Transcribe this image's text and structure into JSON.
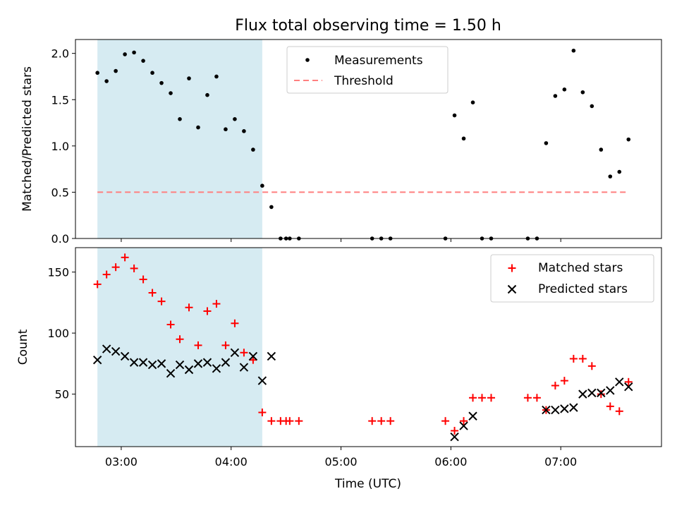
{
  "chart_data": [
    {
      "type": "scatter",
      "title": "Flux total observing time = 1.50 h",
      "xlabel": "",
      "ylabel": "Matched/Predicted stars",
      "xlim": [
        "02:35",
        "07:55"
      ],
      "ylim": [
        0,
        2.15
      ],
      "yticks": [
        "0.0",
        "0.5",
        "1.0",
        "1.5",
        "2.0"
      ],
      "grid": false,
      "legend": "top-center",
      "shaded_interval": [
        "02:47",
        "04:17"
      ],
      "threshold": {
        "name": "Threshold",
        "y": 0.5,
        "x": [
          "02:47",
          "07:37"
        ],
        "color": "#ff7f7f"
      },
      "series": [
        {
          "name": "Measurements",
          "color": "#000000",
          "points": [
            [
              "02:47",
              1.79
            ],
            [
              "02:52",
              1.7
            ],
            [
              "02:57",
              1.81
            ],
            [
              "03:02",
              1.99
            ],
            [
              "03:07",
              2.01
            ],
            [
              "03:12",
              1.92
            ],
            [
              "03:17",
              1.79
            ],
            [
              "03:22",
              1.68
            ],
            [
              "03:27",
              1.57
            ],
            [
              "03:32",
              1.29
            ],
            [
              "03:37",
              1.73
            ],
            [
              "03:42",
              1.2
            ],
            [
              "03:47",
              1.55
            ],
            [
              "03:52",
              1.75
            ],
            [
              "03:57",
              1.18
            ],
            [
              "04:02",
              1.29
            ],
            [
              "04:07",
              1.16
            ],
            [
              "04:12",
              0.96
            ],
            [
              "04:17",
              0.57
            ],
            [
              "04:22",
              0.34
            ],
            [
              "04:27",
              0.0
            ],
            [
              "04:30",
              0.0
            ],
            [
              "04:32",
              0.0
            ],
            [
              "04:37",
              0.0
            ],
            [
              "05:17",
              0.0
            ],
            [
              "05:22",
              0.0
            ],
            [
              "05:27",
              0.0
            ],
            [
              "05:57",
              0.0
            ],
            [
              "06:02",
              1.33
            ],
            [
              "06:07",
              1.08
            ],
            [
              "06:12",
              1.47
            ],
            [
              "06:17",
              0.0
            ],
            [
              "06:22",
              0.0
            ],
            [
              "06:42",
              0.0
            ],
            [
              "06:47",
              0.0
            ],
            [
              "06:52",
              1.03
            ],
            [
              "06:57",
              1.54
            ],
            [
              "07:02",
              1.61
            ],
            [
              "07:07",
              2.03
            ],
            [
              "07:12",
              1.58
            ],
            [
              "07:17",
              1.43
            ],
            [
              "07:22",
              0.96
            ],
            [
              "07:27",
              0.67
            ],
            [
              "07:32",
              0.72
            ],
            [
              "07:37",
              1.07
            ]
          ]
        }
      ]
    },
    {
      "type": "scatter",
      "xlabel": "Time (UTC)",
      "ylabel": "Count",
      "xlim": [
        "02:35",
        "07:55"
      ],
      "ylim": [
        7,
        170
      ],
      "xticks": [
        "03:00",
        "04:00",
        "05:00",
        "06:00",
        "07:00"
      ],
      "yticks": [
        "50",
        "100",
        "150"
      ],
      "grid": false,
      "legend": "top-right",
      "shaded_interval": [
        "02:47",
        "04:17"
      ],
      "series": [
        {
          "name": "Matched stars",
          "marker": "plus",
          "color": "#ff0000",
          "points": [
            [
              "02:47",
              140
            ],
            [
              "02:52",
              148
            ],
            [
              "02:57",
              154
            ],
            [
              "03:02",
              162
            ],
            [
              "03:07",
              153
            ],
            [
              "03:12",
              144
            ],
            [
              "03:17",
              133
            ],
            [
              "03:22",
              126
            ],
            [
              "03:27",
              107
            ],
            [
              "03:32",
              95
            ],
            [
              "03:37",
              121
            ],
            [
              "03:42",
              90
            ],
            [
              "03:47",
              118
            ],
            [
              "03:52",
              124
            ],
            [
              "03:57",
              90
            ],
            [
              "04:02",
              108
            ],
            [
              "04:07",
              84
            ],
            [
              "04:12",
              78
            ],
            [
              "04:17",
              35
            ],
            [
              "04:22",
              28
            ],
            [
              "04:27",
              28
            ],
            [
              "04:30",
              28
            ],
            [
              "04:32",
              28
            ],
            [
              "04:37",
              28
            ],
            [
              "05:17",
              28
            ],
            [
              "05:22",
              28
            ],
            [
              "05:27",
              28
            ],
            [
              "05:57",
              28
            ],
            [
              "06:02",
              20
            ],
            [
              "06:07",
              28
            ],
            [
              "06:12",
              47
            ],
            [
              "06:17",
              47
            ],
            [
              "06:22",
              47
            ],
            [
              "06:42",
              47
            ],
            [
              "06:47",
              47
            ],
            [
              "06:52",
              37
            ],
            [
              "06:57",
              57
            ],
            [
              "07:02",
              61
            ],
            [
              "07:07",
              79
            ],
            [
              "07:12",
              79
            ],
            [
              "07:17",
              73
            ],
            [
              "07:22",
              50
            ],
            [
              "07:27",
              40
            ],
            [
              "07:32",
              36
            ],
            [
              "07:37",
              60
            ]
          ]
        },
        {
          "name": "Predicted stars",
          "marker": "x",
          "color": "#000000",
          "points": [
            [
              "02:47",
              78
            ],
            [
              "02:52",
              87
            ],
            [
              "02:57",
              85
            ],
            [
              "03:02",
              81
            ],
            [
              "03:07",
              76
            ],
            [
              "03:12",
              76
            ],
            [
              "03:17",
              74
            ],
            [
              "03:22",
              75
            ],
            [
              "03:27",
              67
            ],
            [
              "03:32",
              74
            ],
            [
              "03:37",
              70
            ],
            [
              "03:42",
              75
            ],
            [
              "03:47",
              76
            ],
            [
              "03:52",
              71
            ],
            [
              "03:57",
              76
            ],
            [
              "04:02",
              84
            ],
            [
              "04:07",
              72
            ],
            [
              "04:12",
              81
            ],
            [
              "04:17",
              61
            ],
            [
              "04:22",
              81
            ],
            [
              "06:02",
              15
            ],
            [
              "06:07",
              24
            ],
            [
              "06:12",
              32
            ],
            [
              "06:52",
              37
            ],
            [
              "06:57",
              37
            ],
            [
              "07:02",
              38
            ],
            [
              "07:07",
              39
            ],
            [
              "07:12",
              50
            ],
            [
              "07:17",
              51
            ],
            [
              "07:22",
              51
            ],
            [
              "07:27",
              53
            ],
            [
              "07:32",
              60
            ],
            [
              "07:37",
              56
            ]
          ]
        }
      ]
    }
  ]
}
